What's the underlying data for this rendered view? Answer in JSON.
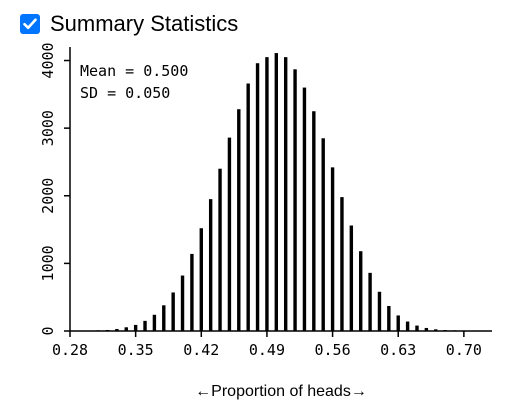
{
  "summary_checkbox": {
    "label": "Summary Statistics",
    "checked": true,
    "accent": "#0075ff"
  },
  "stats": {
    "mean_text": "Mean = 0.500",
    "sd_text": "SD = 0.050"
  },
  "chart_data": {
    "type": "bar",
    "xlabel": "←Proportion of heads→",
    "ylabel": "",
    "xlim": [
      0.28,
      0.73
    ],
    "ylim": [
      0,
      4200
    ],
    "x_ticks": [
      "0.28",
      "0.35",
      "0.42",
      "0.49",
      "0.56",
      "0.63",
      "0.70"
    ],
    "x_tick_values": [
      0.28,
      0.35,
      0.42,
      0.49,
      0.56,
      0.63,
      0.7
    ],
    "y_ticks": [
      "0",
      "1000",
      "2000",
      "3000",
      "4000"
    ],
    "y_tick_values": [
      0,
      1000,
      2000,
      3000,
      4000
    ],
    "grid": false,
    "bar_color": "#000000",
    "x": [
      0.31,
      0.32,
      0.33,
      0.34,
      0.35,
      0.36,
      0.37,
      0.38,
      0.39,
      0.4,
      0.41,
      0.42,
      0.43,
      0.44,
      0.45,
      0.46,
      0.47,
      0.48,
      0.49,
      0.5,
      0.51,
      0.52,
      0.53,
      0.54,
      0.55,
      0.56,
      0.57,
      0.58,
      0.59,
      0.6,
      0.61,
      0.62,
      0.63,
      0.64,
      0.65,
      0.66,
      0.67,
      0.68,
      0.69,
      0.7
    ],
    "values": [
      10,
      15,
      30,
      55,
      90,
      150,
      240,
      380,
      570,
      820,
      1140,
      1520,
      1950,
      2400,
      2860,
      3280,
      3660,
      3960,
      4050,
      4110,
      4050,
      3870,
      3600,
      3250,
      2850,
      2420,
      1980,
      1560,
      1180,
      860,
      580,
      370,
      230,
      140,
      80,
      45,
      25,
      15,
      10,
      5
    ]
  }
}
